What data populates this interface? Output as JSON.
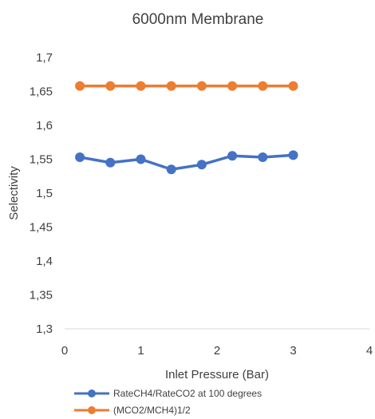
{
  "chart_data": {
    "type": "line",
    "title": "6000nm Membrane",
    "xlabel": "Inlet Pressure (Bar)",
    "ylabel": "Selectivity",
    "xlim": [
      0,
      4
    ],
    "ylim": [
      1.3,
      1.7
    ],
    "x_ticks": [
      "0",
      "1",
      "2",
      "3",
      "4"
    ],
    "y_ticks": [
      "1,3",
      "1,35",
      "1,4",
      "1,45",
      "1,5",
      "1,55",
      "1,6",
      "1,65",
      "1,7"
    ],
    "grid": false,
    "legend_position": "bottom",
    "series": [
      {
        "name": "RateCH4/RateCO2 at 100 degrees",
        "color": "#4472C4",
        "x": [
          0.2,
          0.6,
          1.0,
          1.4,
          1.8,
          2.2,
          2.6,
          3.0
        ],
        "y": [
          1.553,
          1.545,
          1.55,
          1.535,
          1.542,
          1.555,
          1.553,
          1.556
        ]
      },
      {
        "name": "(MCO2/MCH4)1/2",
        "color": "#ED7D31",
        "x": [
          0.2,
          0.6,
          1.0,
          1.4,
          1.8,
          2.2,
          2.6,
          3.0
        ],
        "y": [
          1.658,
          1.658,
          1.658,
          1.658,
          1.658,
          1.658,
          1.658,
          1.658
        ]
      }
    ]
  }
}
